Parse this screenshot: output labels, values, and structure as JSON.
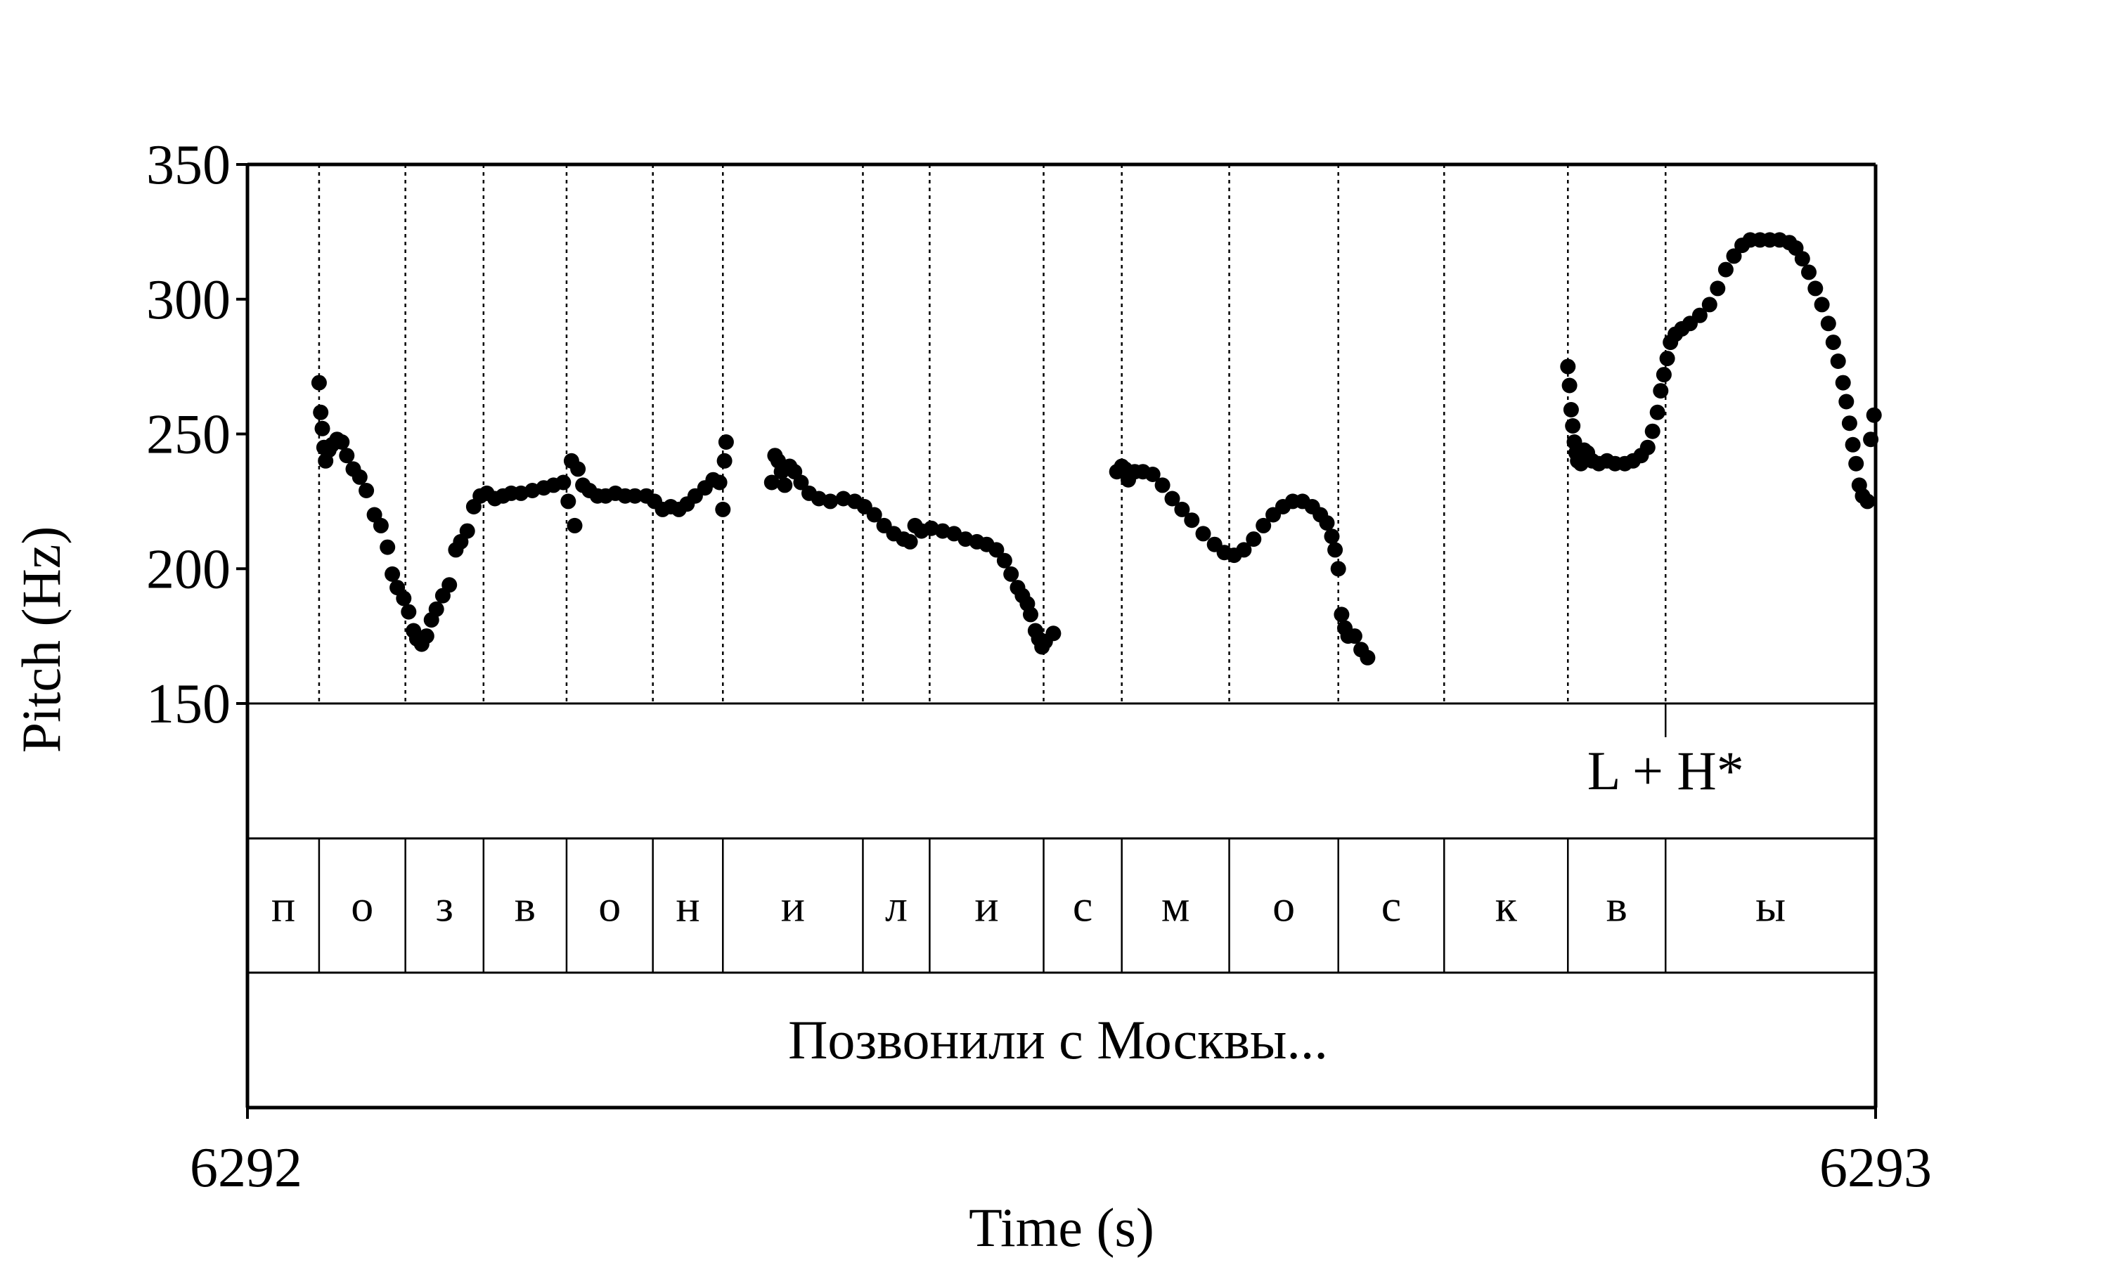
{
  "chart_data": {
    "type": "scatter",
    "xlabel": "Time (s)",
    "ylabel": "Pitch (Hz)",
    "xlim": [
      6292,
      6293
    ],
    "ylim": [
      150,
      350
    ],
    "x_tick_labels": [
      "6292",
      "6293"
    ],
    "y_ticks": [
      150,
      200,
      250,
      300,
      350
    ],
    "y_tick_labels": [
      "150",
      "200",
      "250",
      "300",
      "350"
    ],
    "point_color": "#000000",
    "boundaries": [
      6292.044,
      6292.097,
      6292.145,
      6292.196,
      6292.249,
      6292.292,
      6292.378,
      6292.419,
      6292.489,
      6292.537,
      6292.603,
      6292.67,
      6292.735,
      6292.811,
      6292.871
    ],
    "tone_tier": {
      "boundary": 6292.871,
      "label": "L + H*"
    },
    "segments": [
      {
        "label": "п",
        "start": 6292.0,
        "end": 6292.044
      },
      {
        "label": "о",
        "start": 6292.044,
        "end": 6292.097
      },
      {
        "label": "з",
        "start": 6292.097,
        "end": 6292.145
      },
      {
        "label": "в",
        "start": 6292.145,
        "end": 6292.196
      },
      {
        "label": "о",
        "start": 6292.196,
        "end": 6292.249
      },
      {
        "label": "н",
        "start": 6292.249,
        "end": 6292.292
      },
      {
        "label": "и",
        "start": 6292.292,
        "end": 6292.378
      },
      {
        "label": "л",
        "start": 6292.378,
        "end": 6292.419
      },
      {
        "label": "и",
        "start": 6292.419,
        "end": 6292.489
      },
      {
        "label": "с",
        "start": 6292.489,
        "end": 6292.537
      },
      {
        "label": "м",
        "start": 6292.537,
        "end": 6292.603
      },
      {
        "label": "о",
        "start": 6292.603,
        "end": 6292.67
      },
      {
        "label": "с",
        "start": 6292.67,
        "end": 6292.735
      },
      {
        "label": "к",
        "start": 6292.735,
        "end": 6292.811
      },
      {
        "label": "в",
        "start": 6292.811,
        "end": 6292.871
      },
      {
        "label": "ы",
        "start": 6292.871,
        "end": 6293.0
      }
    ],
    "sentence": "Позвонили с Москвы...",
    "series": [
      {
        "points": [
          [
            6292.044,
            269
          ],
          [
            6292.045,
            258
          ],
          [
            6292.046,
            252
          ],
          [
            6292.047,
            245
          ],
          [
            6292.048,
            240
          ],
          [
            6292.05,
            244
          ],
          [
            6292.052,
            246
          ],
          [
            6292.055,
            248
          ],
          [
            6292.058,
            247
          ],
          [
            6292.061,
            242
          ],
          [
            6292.065,
            237
          ],
          [
            6292.069,
            234
          ],
          [
            6292.073,
            229
          ],
          [
            6292.078,
            220
          ],
          [
            6292.082,
            216
          ],
          [
            6292.086,
            208
          ],
          [
            6292.089,
            198
          ],
          [
            6292.092,
            193
          ],
          [
            6292.096,
            189
          ],
          [
            6292.099,
            184
          ],
          [
            6292.102,
            177
          ],
          [
            6292.104,
            174
          ],
          [
            6292.107,
            172
          ],
          [
            6292.11,
            175
          ],
          [
            6292.113,
            181
          ],
          [
            6292.116,
            185
          ],
          [
            6292.12,
            190
          ],
          [
            6292.124,
            194
          ],
          [
            6292.128,
            207
          ],
          [
            6292.131,
            210
          ],
          [
            6292.135,
            214
          ],
          [
            6292.139,
            223
          ],
          [
            6292.143,
            227
          ],
          [
            6292.147,
            228
          ],
          [
            6292.152,
            226
          ],
          [
            6292.157,
            227
          ],
          [
            6292.162,
            228
          ],
          [
            6292.168,
            228
          ],
          [
            6292.175,
            229
          ],
          [
            6292.182,
            230
          ],
          [
            6292.188,
            231
          ],
          [
            6292.194,
            232
          ],
          [
            6292.197,
            225
          ],
          [
            6292.199,
            240
          ],
          [
            6292.201,
            216
          ],
          [
            6292.203,
            237
          ],
          [
            6292.206,
            231
          ],
          [
            6292.21,
            229
          ],
          [
            6292.215,
            227
          ],
          [
            6292.22,
            227
          ],
          [
            6292.226,
            228
          ],
          [
            6292.232,
            227
          ],
          [
            6292.238,
            227
          ],
          [
            6292.245,
            227
          ],
          [
            6292.25,
            225
          ],
          [
            6292.255,
            222
          ],
          [
            6292.26,
            223
          ],
          [
            6292.265,
            222
          ],
          [
            6292.27,
            224
          ],
          [
            6292.275,
            227
          ],
          [
            6292.281,
            230
          ],
          [
            6292.286,
            233
          ],
          [
            6292.29,
            232
          ],
          [
            6292.292,
            222
          ],
          [
            6292.293,
            240
          ],
          [
            6292.294,
            247
          ]
        ]
      },
      {
        "points": [
          [
            6292.322,
            232
          ],
          [
            6292.324,
            242
          ],
          [
            6292.326,
            240
          ],
          [
            6292.328,
            236
          ],
          [
            6292.33,
            231
          ],
          [
            6292.333,
            238
          ],
          [
            6292.336,
            236
          ],
          [
            6292.34,
            232
          ],
          [
            6292.345,
            228
          ],
          [
            6292.351,
            226
          ],
          [
            6292.358,
            225
          ],
          [
            6292.366,
            226
          ],
          [
            6292.373,
            225
          ],
          [
            6292.379,
            223
          ],
          [
            6292.385,
            220
          ],
          [
            6292.391,
            216
          ],
          [
            6292.397,
            213
          ],
          [
            6292.403,
            211
          ],
          [
            6292.407,
            210
          ],
          [
            6292.41,
            216
          ],
          [
            6292.414,
            214
          ],
          [
            6292.42,
            215
          ],
          [
            6292.427,
            214
          ],
          [
            6292.434,
            213
          ],
          [
            6292.441,
            211
          ],
          [
            6292.448,
            210
          ],
          [
            6292.454,
            209
          ],
          [
            6292.46,
            207
          ],
          [
            6292.465,
            203
          ],
          [
            6292.469,
            198
          ],
          [
            6292.473,
            193
          ],
          [
            6292.476,
            190
          ],
          [
            6292.479,
            187
          ],
          [
            6292.481,
            183
          ],
          [
            6292.484,
            177
          ],
          [
            6292.486,
            174
          ],
          [
            6292.488,
            171
          ],
          [
            6292.49,
            173
          ],
          [
            6292.495,
            176
          ]
        ]
      },
      {
        "points": [
          [
            6292.534,
            236
          ],
          [
            6292.537,
            238
          ],
          [
            6292.539,
            237
          ],
          [
            6292.541,
            233
          ],
          [
            6292.545,
            236
          ],
          [
            6292.55,
            236
          ],
          [
            6292.556,
            235
          ],
          [
            6292.562,
            231
          ],
          [
            6292.568,
            226
          ],
          [
            6292.574,
            222
          ],
          [
            6292.58,
            218
          ],
          [
            6292.587,
            213
          ],
          [
            6292.594,
            209
          ],
          [
            6292.6,
            206
          ],
          [
            6292.606,
            205
          ],
          [
            6292.612,
            207
          ],
          [
            6292.618,
            211
          ],
          [
            6292.624,
            216
          ],
          [
            6292.63,
            220
          ],
          [
            6292.636,
            223
          ],
          [
            6292.642,
            225
          ],
          [
            6292.648,
            225
          ],
          [
            6292.654,
            223
          ],
          [
            6292.659,
            220
          ],
          [
            6292.663,
            217
          ],
          [
            6292.666,
            212
          ],
          [
            6292.668,
            207
          ],
          [
            6292.67,
            200
          ],
          [
            6292.672,
            183
          ],
          [
            6292.674,
            178
          ],
          [
            6292.676,
            175
          ],
          [
            6292.68,
            175
          ],
          [
            6292.684,
            170
          ],
          [
            6292.688,
            167
          ]
        ]
      },
      {
        "points": [
          [
            6292.811,
            275
          ],
          [
            6292.812,
            268
          ],
          [
            6292.813,
            259
          ],
          [
            6292.814,
            253
          ],
          [
            6292.815,
            247
          ],
          [
            6292.816,
            243
          ],
          [
            6292.817,
            240
          ],
          [
            6292.819,
            239
          ],
          [
            6292.821,
            244
          ],
          [
            6292.823,
            243
          ],
          [
            6292.826,
            240
          ],
          [
            6292.83,
            239
          ],
          [
            6292.835,
            240
          ],
          [
            6292.84,
            239
          ],
          [
            6292.846,
            239
          ],
          [
            6292.851,
            240
          ],
          [
            6292.856,
            242
          ],
          [
            6292.86,
            245
          ],
          [
            6292.863,
            251
          ],
          [
            6292.866,
            258
          ],
          [
            6292.868,
            266
          ],
          [
            6292.87,
            272
          ],
          [
            6292.872,
            278
          ],
          [
            6292.874,
            284
          ],
          [
            6292.877,
            287
          ],
          [
            6292.881,
            289
          ],
          [
            6292.886,
            291
          ],
          [
            6292.892,
            294
          ],
          [
            6292.898,
            298
          ],
          [
            6292.903,
            304
          ],
          [
            6292.908,
            311
          ],
          [
            6292.913,
            316
          ],
          [
            6292.918,
            320
          ],
          [
            6292.923,
            322
          ],
          [
            6292.929,
            322
          ],
          [
            6292.935,
            322
          ],
          [
            6292.941,
            322
          ],
          [
            6292.947,
            321
          ],
          [
            6292.951,
            319
          ],
          [
            6292.955,
            315
          ],
          [
            6292.959,
            310
          ],
          [
            6292.963,
            304
          ],
          [
            6292.967,
            298
          ],
          [
            6292.971,
            291
          ],
          [
            6292.974,
            284
          ],
          [
            6292.977,
            277
          ],
          [
            6292.98,
            269
          ],
          [
            6292.982,
            262
          ],
          [
            6292.984,
            254
          ],
          [
            6292.986,
            246
          ],
          [
            6292.988,
            239
          ],
          [
            6292.99,
            231
          ],
          [
            6292.992,
            227
          ],
          [
            6292.995,
            225
          ],
          [
            6292.997,
            248
          ],
          [
            6292.999,
            257
          ]
        ]
      }
    ]
  }
}
